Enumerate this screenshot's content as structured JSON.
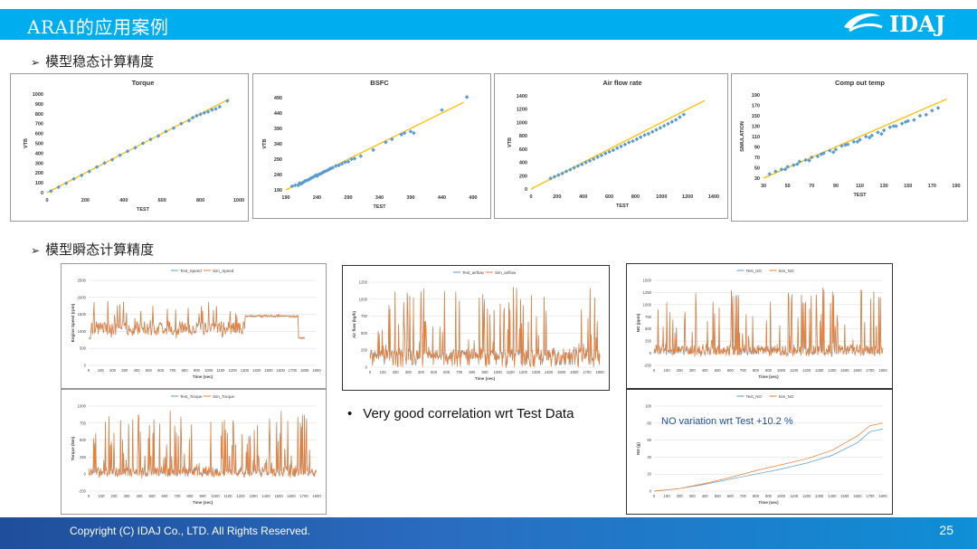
{
  "header": {
    "title": "ARAI的应用案例",
    "logo_text": "IDAJ",
    "accent": "#00AEEF"
  },
  "sections": {
    "steady": "模型稳态计算精度",
    "transient": "模型瞬态计算精度"
  },
  "bullet": "Very good correlation wrt Test Data",
  "footer": {
    "copyright": "Copyright (C)  IDAJ Co., LTD. All Rights Reserved.",
    "page": "25"
  },
  "colors": {
    "test": "#5B9BD5",
    "sim": "#ED7D31",
    "fit": "#FFC000",
    "scatter": "#5B9BD5"
  },
  "chart_data": [
    {
      "type": "scatter",
      "title": "Torque",
      "xlabel": "TEST",
      "ylabel": "VTB",
      "xlim": [
        0,
        1000
      ],
      "ylim": [
        0,
        1000
      ],
      "xticks": [
        "0",
        "200",
        "400",
        "600",
        "800",
        "1000"
      ],
      "yticks": [
        "0",
        "100",
        "200",
        "300",
        "400",
        "500",
        "600",
        "700",
        "800",
        "900",
        "1000"
      ],
      "x": [
        20,
        60,
        100,
        140,
        180,
        220,
        260,
        300,
        340,
        380,
        420,
        460,
        500,
        540,
        580,
        620,
        660,
        700,
        740,
        760,
        780,
        800,
        820,
        840,
        860,
        880,
        900,
        940
      ],
      "y": [
        15,
        55,
        95,
        140,
        175,
        215,
        260,
        300,
        335,
        380,
        420,
        455,
        500,
        540,
        575,
        620,
        655,
        700,
        730,
        760,
        780,
        795,
        810,
        820,
        840,
        850,
        870,
        930
      ]
    },
    {
      "type": "scatter",
      "title": "BSFC",
      "xlabel": "TEST",
      "ylabel": "VTB",
      "xlim": [
        190,
        490
      ],
      "ylim": [
        190,
        490
      ],
      "xticks": [
        "190",
        "240",
        "290",
        "340",
        "390",
        "440",
        "490"
      ],
      "yticks": [
        "190",
        "240",
        "290",
        "340",
        "390",
        "440",
        "490"
      ],
      "x": [
        200,
        205,
        210,
        212,
        215,
        218,
        220,
        222,
        225,
        228,
        230,
        232,
        235,
        238,
        240,
        242,
        245,
        248,
        250,
        252,
        255,
        258,
        260,
        262,
        265,
        270,
        275,
        280,
        285,
        290,
        295,
        300,
        310,
        330,
        350,
        360,
        375,
        380,
        390,
        395,
        440,
        480
      ],
      "y": [
        202,
        205,
        205,
        212,
        210,
        215,
        218,
        220,
        222,
        225,
        228,
        230,
        233,
        238,
        235,
        240,
        242,
        245,
        248,
        250,
        252,
        255,
        258,
        260,
        262,
        268,
        270,
        275,
        280,
        282,
        290,
        292,
        300,
        320,
        345,
        355,
        370,
        375,
        380,
        375,
        450,
        492
      ]
    },
    {
      "type": "scatter",
      "title": "Air flow rate",
      "xlabel": "TEST",
      "ylabel": "VTB",
      "xlim": [
        0,
        1400
      ],
      "ylim": [
        0,
        1400
      ],
      "xticks": [
        "0",
        "200",
        "400",
        "600",
        "800",
        "1000",
        "1200",
        "1400"
      ],
      "yticks": [
        "0",
        "200",
        "400",
        "600",
        "800",
        "1000",
        "1200",
        "1400"
      ],
      "x": [
        150,
        180,
        210,
        240,
        270,
        300,
        330,
        360,
        390,
        420,
        450,
        480,
        510,
        540,
        570,
        600,
        630,
        660,
        690,
        720,
        750,
        780,
        810,
        840,
        870,
        900,
        930,
        960,
        990,
        1020,
        1050,
        1080,
        1110,
        1140,
        1170
      ],
      "y": [
        160,
        185,
        210,
        235,
        265,
        290,
        320,
        345,
        370,
        400,
        425,
        450,
        480,
        505,
        535,
        560,
        585,
        615,
        640,
        670,
        700,
        720,
        750,
        780,
        810,
        830,
        860,
        890,
        920,
        950,
        980,
        1010,
        1040,
        1080,
        1120
      ]
    },
    {
      "type": "scatter",
      "title": "Comp out temp",
      "xlabel": "TEST",
      "ylabel": "SIMULATION",
      "xlim": [
        30,
        190
      ],
      "ylim": [
        30,
        190
      ],
      "xticks": [
        "30",
        "50",
        "70",
        "90",
        "110",
        "130",
        "150",
        "170",
        "190"
      ],
      "yticks": [
        "30",
        "50",
        "70",
        "90",
        "110",
        "130",
        "150",
        "170",
        "190"
      ],
      "x": [
        35,
        40,
        45,
        50,
        55,
        60,
        65,
        70,
        75,
        80,
        85,
        90,
        95,
        100,
        105,
        110,
        115,
        120,
        125,
        130,
        135,
        140,
        145,
        150,
        155,
        160,
        165,
        170,
        175,
        48,
        58,
        68,
        78,
        88,
        98,
        108,
        118,
        128,
        138,
        148
      ],
      "y": [
        38,
        43,
        47,
        52,
        55,
        62,
        65,
        70,
        72,
        78,
        83,
        85,
        92,
        95,
        100,
        104,
        110,
        112,
        118,
        122,
        128,
        130,
        135,
        140,
        142,
        150,
        152,
        160,
        165,
        47,
        57,
        64,
        76,
        80,
        94,
        100,
        108,
        115,
        130,
        138
      ]
    },
    {
      "type": "line",
      "series": [
        {
          "name": "Test_Speed"
        },
        {
          "name": "Sim_Speed"
        }
      ],
      "xlabel": "Time (sec)",
      "ylabel": "Engine Speed (rpm)",
      "xlim": [
        0,
        1900
      ],
      "ylim": [
        0,
        2500
      ],
      "xticks": [
        "0",
        "100",
        "200",
        "300",
        "400",
        "500",
        "600",
        "700",
        "800",
        "900",
        "1000",
        "1100",
        "1200",
        "1300",
        "1400",
        "1500",
        "1600",
        "1700",
        "1800",
        "1900"
      ],
      "yticks": [
        "0",
        "500",
        "1000",
        "1500",
        "2000",
        "2500"
      ]
    },
    {
      "type": "line",
      "series": [
        {
          "name": "Test_airflow"
        },
        {
          "name": "Sim_airflow"
        }
      ],
      "xlabel": "Time (sec)",
      "ylabel": "Air flow (kg/h)",
      "xlim": [
        0,
        1800
      ],
      "ylim": [
        0,
        1250
      ],
      "xticks": [
        "0",
        "100",
        "200",
        "300",
        "400",
        "500",
        "600",
        "700",
        "800",
        "900",
        "1000",
        "1100",
        "1200",
        "1300",
        "1400",
        "1500",
        "1600",
        "1700",
        "1800"
      ],
      "yticks": [
        "0",
        "250",
        "500",
        "750",
        "1000",
        "1250"
      ]
    },
    {
      "type": "line",
      "series": [
        {
          "name": "Test_NO"
        },
        {
          "name": "Sim_NO"
        }
      ],
      "xlabel": "Time (sec)",
      "ylabel": "NO (ppm)",
      "xlim": [
        0,
        1800
      ],
      "ylim": [
        -250,
        1500
      ],
      "xticks": [
        "0",
        "100",
        "200",
        "300",
        "400",
        "500",
        "600",
        "700",
        "800",
        "900",
        "1000",
        "1100",
        "1200",
        "1300",
        "1400",
        "1500",
        "1600",
        "1700",
        "1800"
      ],
      "yticks": [
        "-250",
        "0",
        "250",
        "500",
        "750",
        "1000",
        "1250",
        "1500"
      ]
    },
    {
      "type": "line",
      "series": [
        {
          "name": "Test_Torque"
        },
        {
          "name": "Sim_Torque"
        }
      ],
      "xlabel": "Time (sec)",
      "ylabel": "Torque (Nm)",
      "xlim": [
        0,
        1800
      ],
      "ylim": [
        -250,
        1000
      ],
      "xticks": [
        "0",
        "100",
        "200",
        "300",
        "400",
        "500",
        "600",
        "700",
        "800",
        "900",
        "1000",
        "1100",
        "1200",
        "1300",
        "1400",
        "1500",
        "1600",
        "1700",
        "1800"
      ],
      "yticks": [
        "-250",
        "0",
        "250",
        "500",
        "750",
        "1000"
      ]
    },
    {
      "type": "line",
      "series": [
        {
          "name": "Test_NO"
        },
        {
          "name": "Sim_NO"
        }
      ],
      "annotation": "NO variation wrt Test +10.2 %",
      "xlabel": "Time (sec)",
      "ylabel": "NO (g)",
      "xlim": [
        0,
        1800
      ],
      "ylim": [
        0,
        100
      ],
      "xticks": [
        "0",
        "100",
        "200",
        "300",
        "400",
        "500",
        "600",
        "700",
        "800",
        "900",
        "1000",
        "1100",
        "1200",
        "1300",
        "1400",
        "1500",
        "1600",
        "1700",
        "1800"
      ],
      "yticks": [
        "0",
        "20",
        "40",
        "60",
        "80",
        "100"
      ],
      "x": [
        0,
        200,
        400,
        600,
        800,
        1000,
        1200,
        1400,
        1600,
        1700,
        1800
      ],
      "test": [
        0,
        3,
        8,
        14,
        20,
        26,
        33,
        42,
        57,
        70,
        73
      ],
      "sim": [
        0,
        3,
        9,
        16,
        24,
        31,
        38,
        48,
        65,
        77,
        80
      ]
    }
  ]
}
